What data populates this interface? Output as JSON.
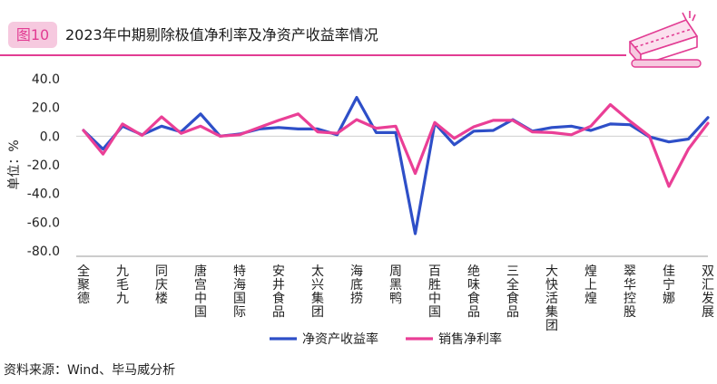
{
  "header": {
    "figure_label": "图10",
    "title": "2023年中期剔除极值净利率及净资产收益率情况"
  },
  "chart_data": {
    "type": "line",
    "ylabel": "单位：%",
    "ylim": [
      -80,
      40
    ],
    "yticks": [
      "40.0",
      "20.0",
      "0.0",
      "-20.0",
      "-40.0",
      "-60.0",
      "-80.0"
    ],
    "categories": [
      "全聚德",
      "九毛九",
      "同庆楼",
      "唐宫中国",
      "特海国际",
      "安井食品",
      "太兴集团",
      "海底捞",
      "周黑鸭",
      "百胜中国",
      "绝味食品",
      "三全食品",
      "大快活集团",
      "煌上煌",
      "翠华控股",
      "佳宁娜",
      "双汇发展"
    ],
    "x": [
      "全聚德",
      "",
      "九毛九",
      "",
      "同庆楼",
      "",
      "唐宫中国",
      "",
      "特海国际",
      "",
      "安井食品",
      "",
      "太兴集团",
      "",
      "海底捞",
      "",
      "周黑鸭",
      "",
      "百胜中国",
      "",
      "绝味食品",
      "",
      "三全食品",
      "",
      "大快活集团",
      "",
      "煌上煌",
      "",
      "翠华控股",
      "",
      "佳宁娜",
      "",
      "双汇发展"
    ],
    "series": [
      {
        "name": "净资产收益率",
        "color": "#2e4fc8",
        "values": [
          4.0,
          -9.0,
          7.0,
          1.0,
          7.0,
          3.0,
          15.5,
          0.0,
          1.5,
          5.0,
          6.0,
          5.0,
          5.0,
          1.0,
          27.0,
          2.5,
          2.5,
          -68.0,
          9.0,
          -6.0,
          3.5,
          4.0,
          11.5,
          3.5,
          6.0,
          7.0,
          4.0,
          8.5,
          8.0,
          -0.5,
          -4.0,
          -2.0,
          13.0
        ]
      },
      {
        "name": "销售净利率",
        "color": "#ea3f96",
        "values": [
          4.0,
          -12.5,
          8.5,
          0.5,
          13.5,
          2.0,
          7.0,
          0.0,
          1.0,
          6.0,
          11.0,
          15.5,
          3.0,
          2.0,
          11.5,
          5.5,
          7.0,
          -26.0,
          9.5,
          -1.5,
          6.5,
          11.0,
          11.0,
          3.0,
          2.5,
          1.0,
          7.0,
          22.0,
          10.5,
          0.0,
          -35.0,
          -9.0,
          9.0
        ]
      }
    ],
    "legend": "bottom-center",
    "grid": false
  },
  "footer": {
    "source": "资料来源：Wind、毕马威分析"
  }
}
